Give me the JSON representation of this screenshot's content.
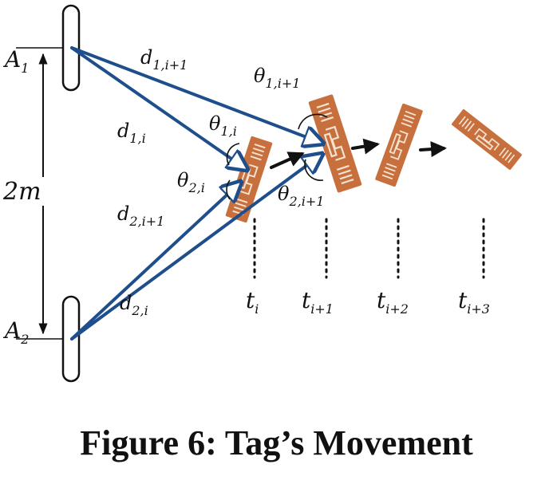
{
  "caption": "Figure 6: Tag’s Movement",
  "antennas": [
    {
      "main": "A",
      "sub": "1"
    },
    {
      "main": "A",
      "sub": "2"
    }
  ],
  "separation_label": "2m",
  "distances": [
    {
      "main": "d",
      "sub": "1,i+1"
    },
    {
      "main": "d",
      "sub": "1,i"
    },
    {
      "main": "d",
      "sub": "2,i+1"
    },
    {
      "main": "d",
      "sub": "2,i"
    }
  ],
  "angles": [
    {
      "main": "θ",
      "sub": "1,i+1"
    },
    {
      "main": "θ",
      "sub": "1,i"
    },
    {
      "main": "θ",
      "sub": "2,i"
    },
    {
      "main": "θ",
      "sub": "2,i+1"
    }
  ],
  "times": [
    {
      "main": "t",
      "sub": "i"
    },
    {
      "main": "t",
      "sub": "i+1"
    },
    {
      "main": "t",
      "sub": "i+2"
    },
    {
      "main": "t",
      "sub": "i+3"
    }
  ],
  "colors": {
    "ray": "#1f4e8c",
    "tag_fill": "#c8703d",
    "tag_inlay": "#f2e2cf",
    "ink": "#111111"
  }
}
